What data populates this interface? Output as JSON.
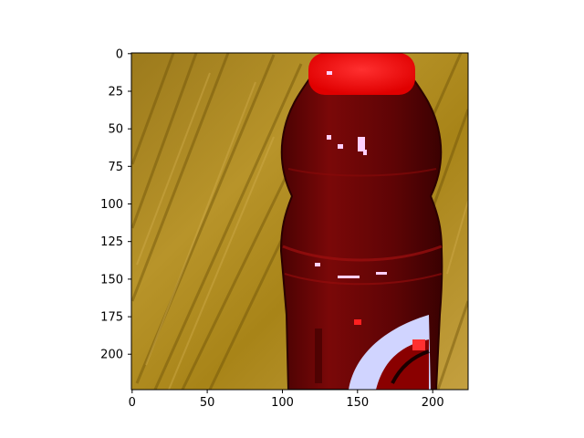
{
  "figure": {
    "image_subject": "red sports drink bottle on wooden surface",
    "x_ticks": [
      "0",
      "50",
      "100",
      "150",
      "200"
    ],
    "y_ticks": [
      "0",
      "25",
      "50",
      "75",
      "100",
      "125",
      "150",
      "175",
      "200"
    ],
    "x_range": [
      0,
      224
    ],
    "y_range": [
      0,
      224
    ],
    "colors": {
      "cap": "#ff1a1a",
      "bottle": "#6a0506",
      "bottle_dark": "#3a0102",
      "wood": "#a8861c",
      "wood_dark": "#7a5e10",
      "label_white": "#c8c8ff"
    }
  }
}
